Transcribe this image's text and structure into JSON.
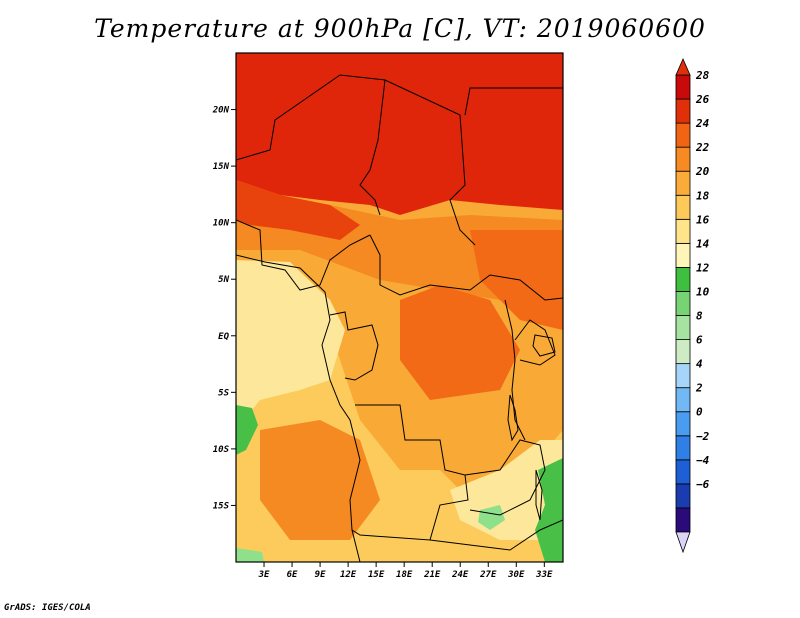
{
  "title": "Temperature at 900hPa [C], VT: 2019060600",
  "credit": "GrADS: IGES/COLA",
  "axes": {
    "lat_labels": [
      "20N",
      "15N",
      "10N",
      "5N",
      "EQ",
      "5S",
      "10S",
      "15S"
    ],
    "lat_values": [
      20,
      15,
      10,
      5,
      0,
      -5,
      -10,
      -15
    ],
    "lon_labels": [
      "3E",
      "6E",
      "9E",
      "12E",
      "15E",
      "18E",
      "21E",
      "24E",
      "27E",
      "30E",
      "33E"
    ],
    "lon_values": [
      3,
      6,
      9,
      12,
      15,
      18,
      21,
      24,
      27,
      30,
      33
    ],
    "lon_range": [
      0,
      35
    ],
    "lat_range": [
      -20,
      25
    ]
  },
  "colorbar": {
    "labels": [
      "28",
      "26",
      "24",
      "22",
      "20",
      "18",
      "16",
      "14",
      "12",
      "10",
      "8",
      "6",
      "4",
      "2",
      "0",
      "−2",
      "−4",
      "−6"
    ],
    "colors": [
      "#2b0a7a",
      "#1a3cb0",
      "#1f5fd6",
      "#2f7fe6",
      "#4a9cf0",
      "#72b8f5",
      "#a7d4f9",
      "#cdebc4",
      "#a6e3a0",
      "#78d374",
      "#3fbf3f",
      "#fff5b8",
      "#ffe48a",
      "#fdca5a",
      "#fbab3a",
      "#f78a22",
      "#f06414",
      "#e0300a",
      "#c80a0a"
    ],
    "top_color": "#e0300a",
    "bottom_color": "#dcd4f8"
  },
  "fields": {
    "north_hot": "#e0260a",
    "west_hot": "#e8420d",
    "congo_warm": "#f26a16",
    "band_orange": "#f58a22",
    "mid_orange": "#f9a936",
    "south_yellow": "#fccb5c",
    "coast_pale": "#fde79a",
    "cool_green": "#48c048",
    "light_green": "#8ee08a"
  }
}
